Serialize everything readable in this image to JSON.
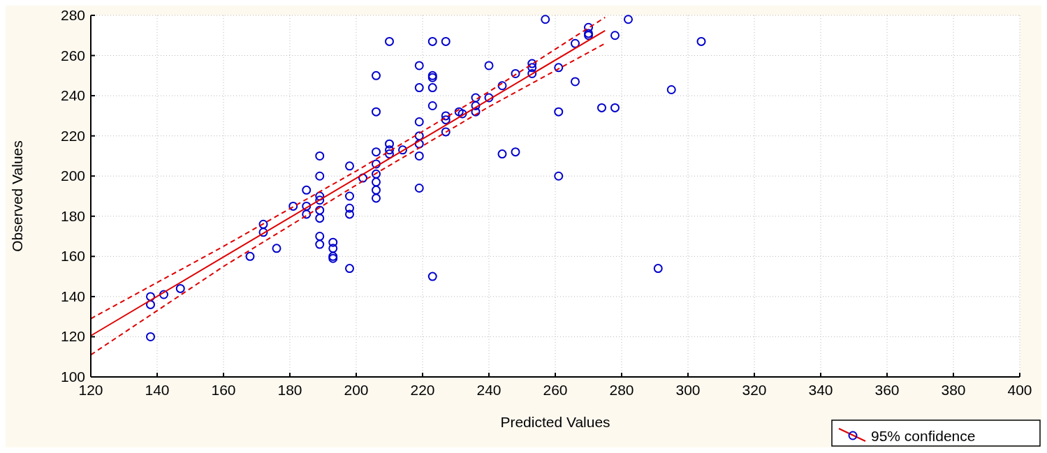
{
  "chart_data": {
    "type": "scatter",
    "xlabel": "Predicted Values",
    "ylabel": "Observed Values",
    "xlim": [
      120,
      400
    ],
    "xticks": [
      120,
      140,
      160,
      180,
      200,
      220,
      240,
      260,
      280,
      300,
      320,
      340,
      360,
      380,
      400
    ],
    "ylim": [
      100,
      280
    ],
    "yticks": [
      100,
      120,
      140,
      160,
      180,
      200,
      220,
      240,
      260,
      280
    ],
    "grid": true,
    "legend": "bottom right",
    "marker": "circle",
    "series": [
      {
        "color": "#0000cc",
        "x": [
          138,
          138,
          138,
          142,
          147,
          168,
          172,
          172,
          176,
          181,
          185,
          185,
          185,
          189,
          189,
          189,
          189,
          189,
          189,
          189,
          189,
          193,
          193,
          193,
          193,
          198,
          198,
          198,
          198,
          198,
          202,
          206,
          206,
          206,
          206,
          206,
          206,
          206,
          206,
          210,
          210,
          210,
          210,
          214,
          219,
          219,
          219,
          219,
          219,
          219,
          219,
          223,
          223,
          223,
          223,
          223,
          223,
          227,
          227,
          227,
          227,
          231,
          232,
          236,
          236,
          236,
          240,
          240,
          244,
          244,
          248,
          248,
          253,
          253,
          253,
          257,
          261,
          261,
          261,
          266,
          266,
          270,
          270,
          270,
          274,
          278,
          278,
          282,
          291,
          295,
          304
        ],
        "values": [
          140,
          136,
          120,
          141,
          144,
          160,
          176,
          172,
          164,
          185,
          193,
          185,
          181,
          210,
          200,
          190,
          188,
          183,
          179,
          170,
          166,
          167,
          164,
          160,
          159,
          205,
          190,
          184,
          181,
          154,
          199,
          250,
          232,
          212,
          206,
          201,
          197,
          193,
          189,
          267,
          216,
          213,
          211,
          213,
          255,
          244,
          227,
          220,
          216,
          210,
          194,
          267,
          250,
          249,
          244,
          235,
          150,
          267,
          230,
          228,
          222,
          232,
          231,
          239,
          235,
          232,
          255,
          239,
          245,
          211,
          251,
          212,
          256,
          254,
          251,
          278,
          254,
          232,
          200,
          266,
          247,
          274,
          271,
          270,
          234,
          270,
          234,
          278,
          154,
          243,
          267
        ]
      },
      {
        "type": "line",
        "name": "95% confidence",
        "color": "#e00000",
        "marker": "none",
        "line_style": "solid",
        "x": [
          120,
          160,
          200,
          240,
          275
        ],
        "values": [
          120.5,
          159.7,
          198.9,
          238.1,
          272.4
        ]
      },
      {
        "type": "line",
        "color": "#e00000",
        "marker": "none",
        "line_style": "dashed",
        "x": [
          120,
          160,
          200,
          240,
          275
        ],
        "values": [
          129,
          165,
          202.5,
          242,
          279
        ]
      },
      {
        "type": "line",
        "color": "#e00000",
        "marker": "none",
        "line_style": "dashed",
        "x": [
          120,
          160,
          200,
          240,
          275
        ],
        "values": [
          111,
          155,
          195.5,
          234.5,
          266
        ]
      }
    ]
  }
}
